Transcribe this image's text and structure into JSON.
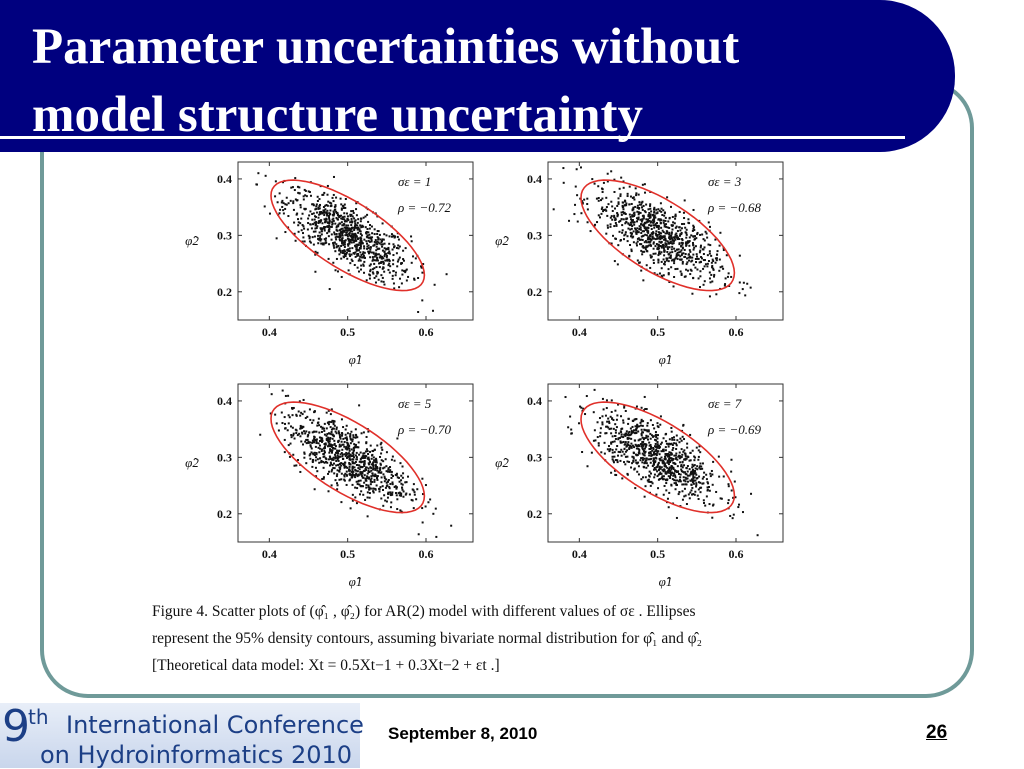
{
  "slide": {
    "title_line_1": "Parameter uncertainties without",
    "title_line_2": "model structure uncertainty",
    "date": "September 8, 2010",
    "page_number": "26"
  },
  "logo": {
    "nine": "9",
    "th": "th",
    "line1": "International Conference",
    "line2": "on Hydroinformatics 2010"
  },
  "caption": {
    "line1": "Figure 4. Scatter plots of (φ̂₁ , φ̂₂) for AR(2) model with different values of σε . Ellipses",
    "line2": "represent the 95% density contours, assuming bivariate normal distribution for φ̂₁ and φ̂₂",
    "line3": "[Theoretical data model: Xt = 0.5Xt−1 + 0.3Xt−2 + εt .]"
  },
  "colors": {
    "banner": "#00007f",
    "frame": "#6f9a99",
    "ellipse": "#e0302a",
    "points": "#111111"
  },
  "chart_data": [
    {
      "type": "scatter",
      "xlabel": "φ̂1",
      "ylabel": "φ̂2",
      "xlim": [
        0.36,
        0.66
      ],
      "ylim": [
        0.15,
        0.43
      ],
      "xticks": [
        "0.4",
        "0.5",
        "0.6"
      ],
      "yticks": [
        "0.2",
        "0.3",
        "0.4"
      ],
      "annotation_sigma": "σε = 1",
      "annotation_rho": "ρ = −0.72",
      "rho": -0.72,
      "mean": [
        0.5,
        0.3
      ],
      "std": [
        0.04,
        0.04
      ]
    },
    {
      "type": "scatter",
      "xlabel": "φ̂1",
      "ylabel": "φ̂2",
      "xlim": [
        0.36,
        0.66
      ],
      "ylim": [
        0.15,
        0.43
      ],
      "xticks": [
        "0.4",
        "0.5",
        "0.6"
      ],
      "yticks": [
        "0.2",
        "0.3",
        "0.4"
      ],
      "annotation_sigma": "σε = 3",
      "annotation_rho": "ρ = −0.68",
      "rho": -0.68,
      "mean": [
        0.5,
        0.3
      ],
      "std": [
        0.04,
        0.04
      ]
    },
    {
      "type": "scatter",
      "xlabel": "φ̂1",
      "ylabel": "φ̂2",
      "xlim": [
        0.36,
        0.66
      ],
      "ylim": [
        0.15,
        0.43
      ],
      "xticks": [
        "0.4",
        "0.5",
        "0.6"
      ],
      "yticks": [
        "0.2",
        "0.3",
        "0.4"
      ],
      "annotation_sigma": "σε = 5",
      "annotation_rho": "ρ = −0.70",
      "rho": -0.7,
      "mean": [
        0.5,
        0.3
      ],
      "std": [
        0.04,
        0.04
      ]
    },
    {
      "type": "scatter",
      "xlabel": "φ̂1",
      "ylabel": "φ̂2",
      "xlim": [
        0.36,
        0.66
      ],
      "ylim": [
        0.15,
        0.43
      ],
      "xticks": [
        "0.4",
        "0.5",
        "0.6"
      ],
      "yticks": [
        "0.2",
        "0.3",
        "0.4"
      ],
      "annotation_sigma": "σε = 7",
      "annotation_rho": "ρ = −0.69",
      "rho": -0.69,
      "mean": [
        0.5,
        0.3
      ],
      "std": [
        0.04,
        0.04
      ]
    }
  ]
}
